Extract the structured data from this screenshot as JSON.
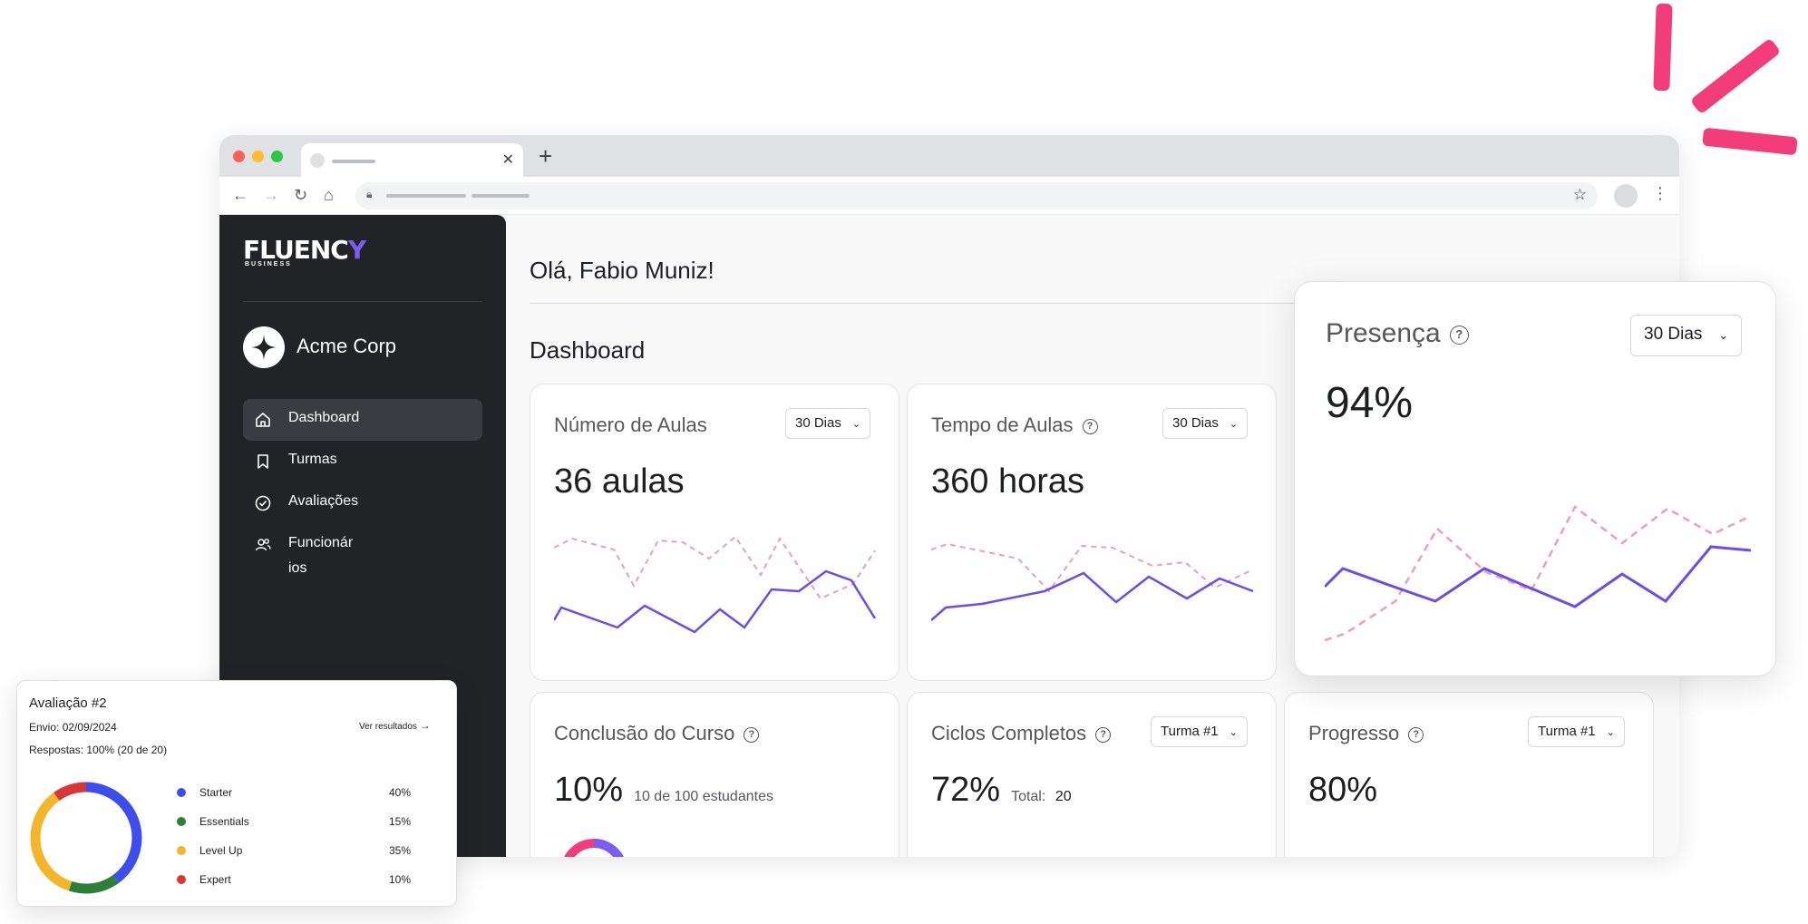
{
  "accent_colors": {
    "brand_purple": "#6a4cf0",
    "pink": "#f26a9e",
    "sidebar_bg": "#212327",
    "accent_strokes": "#f23d7a"
  },
  "brand": {
    "logo_text": "FLUENCY",
    "logo_sub": "BUSINESS"
  },
  "sidebar": {
    "org_name": "Acme Corp",
    "items": [
      {
        "label": "Dashboard",
        "icon": "home-icon",
        "active": true
      },
      {
        "label": "Turmas",
        "icon": "bookmark-icon",
        "active": false
      },
      {
        "label": "Avaliações",
        "icon": "check-circle-icon",
        "active": false
      },
      {
        "label": "Funcionár\nios",
        "icon": "users-icon",
        "active": false
      }
    ]
  },
  "header": {
    "greeting": "Olá, Fabio Muniz!",
    "section_title": "Dashboard"
  },
  "cards": {
    "aulas": {
      "title": "Número de Aulas",
      "select": "30 Dias",
      "value": "36 aulas"
    },
    "tempo": {
      "title": "Tempo de Aulas",
      "select": "30 Dias",
      "value": "360 horas"
    },
    "conclusao": {
      "title": "Conclusão do Curso",
      "value": "10%",
      "note": "10 de 100 estudantes"
    },
    "ciclos": {
      "title": "Ciclos Completos",
      "select": "Turma #1",
      "value": "72%",
      "note_label": "Total:",
      "note_value": "20"
    },
    "progresso": {
      "title": "Progresso",
      "select": "Turma #1",
      "value": "80%"
    }
  },
  "presenca": {
    "title": "Presença",
    "select": "30 Dias",
    "value": "94%"
  },
  "evaluation": {
    "title": "Avaliação #2",
    "envio_label": "Envio:",
    "envio_value": "02/09/2024",
    "respostas_label": "Respostas:",
    "respostas_value": "100% (20 de 20)",
    "link": "Ver resultados",
    "segments": [
      {
        "label": "Starter",
        "pct": "40%",
        "value": 40,
        "color": "#3d4ef0"
      },
      {
        "label": "Essentials",
        "pct": "15%",
        "value": 15,
        "color": "#2f7d3a"
      },
      {
        "label": "Level Up",
        "pct": "35%",
        "value": 35,
        "color": "#f5b52a"
      },
      {
        "label": "Expert",
        "pct": "10%",
        "value": 10,
        "color": "#d93636"
      }
    ]
  }
}
